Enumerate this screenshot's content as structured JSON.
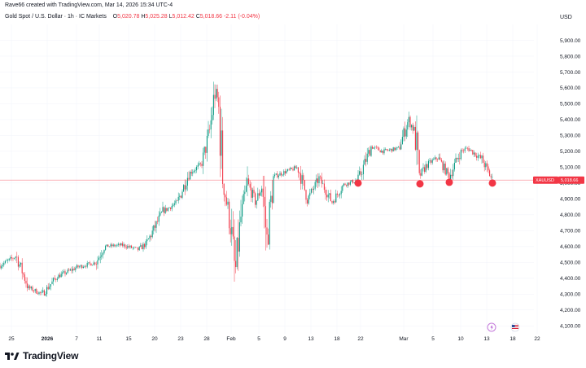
{
  "header": {
    "creator": "Rave66 created with TradingView.com, Mar 14, 2026 15:34 UTC-4",
    "symbol_line": "Gold Spot / U.S. Dollar · 1h · IC Markets",
    "open_label": "O",
    "open_value": "5,020.78",
    "high_label": "H",
    "high_value": "5,025.28",
    "low_label": "L",
    "low_value": "5,012.42",
    "close_label": "C",
    "close_value": "5,018.66",
    "change": "-2.11 (-0.04%)",
    "currency": "USD"
  },
  "price_tag": {
    "symbol": "XAUUSD",
    "value": "5,018.66"
  },
  "brand": {
    "name": "TradingView"
  },
  "colors": {
    "up": "#089981",
    "down": "#f23645",
    "marker": "#f23645",
    "grid": "#f0f3fa"
  },
  "chart_data": {
    "type": "candlestick",
    "instrument": "Gold Spot / U.S. Dollar",
    "timeframe": "1h",
    "ylim": [
      4050,
      6000
    ],
    "y_ticks": [
      "4,100.00",
      "4,200.00",
      "4,300.00",
      "4,400.00",
      "4,500.00",
      "4,600.00",
      "4,700.00",
      "4,800.00",
      "4,900.00",
      "5,000.00",
      "5,100.00",
      "5,200.00",
      "5,300.00",
      "5,400.00",
      "5,500.00",
      "5,600.00",
      "5,700.00",
      "5,800.00",
      "5,900.00"
    ],
    "x_ticks": [
      "25",
      "2026",
      "7",
      "11",
      "15",
      "20",
      "23",
      "28",
      "Feb",
      "5",
      "9",
      "13",
      "18",
      "22",
      "Mar",
      "5",
      "10",
      "13",
      "18",
      "22"
    ],
    "last_price": 5018.66,
    "path": [
      [
        0,
        4480
      ],
      [
        20,
        4540
      ],
      [
        35,
        4340
      ],
      [
        52,
        4300
      ],
      [
        70,
        4410
      ],
      [
        95,
        4470
      ],
      [
        118,
        4500
      ],
      [
        128,
        4600
      ],
      [
        150,
        4610
      ],
      [
        170,
        4580
      ],
      [
        180,
        4620
      ],
      [
        200,
        4820
      ],
      [
        218,
        4880
      ],
      [
        232,
        5060
      ],
      [
        248,
        5120
      ],
      [
        258,
        5340
      ],
      [
        264,
        5580
      ],
      [
        268,
        5520
      ],
      [
        274,
        5020
      ],
      [
        284,
        4700
      ],
      [
        289,
        4420
      ],
      [
        296,
        4780
      ],
      [
        304,
        5000
      ],
      [
        314,
        4880
      ],
      [
        322,
        4980
      ],
      [
        328,
        4640
      ],
      [
        336,
        5040
      ],
      [
        350,
        5070
      ],
      [
        366,
        5100
      ],
      [
        378,
        4900
      ],
      [
        392,
        5030
      ],
      [
        408,
        4880
      ],
      [
        422,
        4990
      ],
      [
        440,
        5020
      ],
      [
        456,
        5230
      ],
      [
        470,
        5200
      ],
      [
        490,
        5220
      ],
      [
        502,
        5400
      ],
      [
        510,
        5320
      ],
      [
        515,
        5040
      ],
      [
        525,
        5120
      ],
      [
        538,
        5160
      ],
      [
        552,
        5040
      ],
      [
        566,
        5200
      ],
      [
        575,
        5220
      ],
      [
        592,
        5150
      ],
      [
        605,
        5019
      ]
    ],
    "markers": [
      {
        "x_tick": "22",
        "price": 5000
      },
      {
        "x_tick": "Mar",
        "price": 4995
      },
      {
        "x_tick": "5",
        "price": 5005
      },
      {
        "x_tick": "13",
        "price": 5000
      }
    ],
    "event_icons": [
      "lightning-icon",
      "us-flag-icon"
    ]
  }
}
